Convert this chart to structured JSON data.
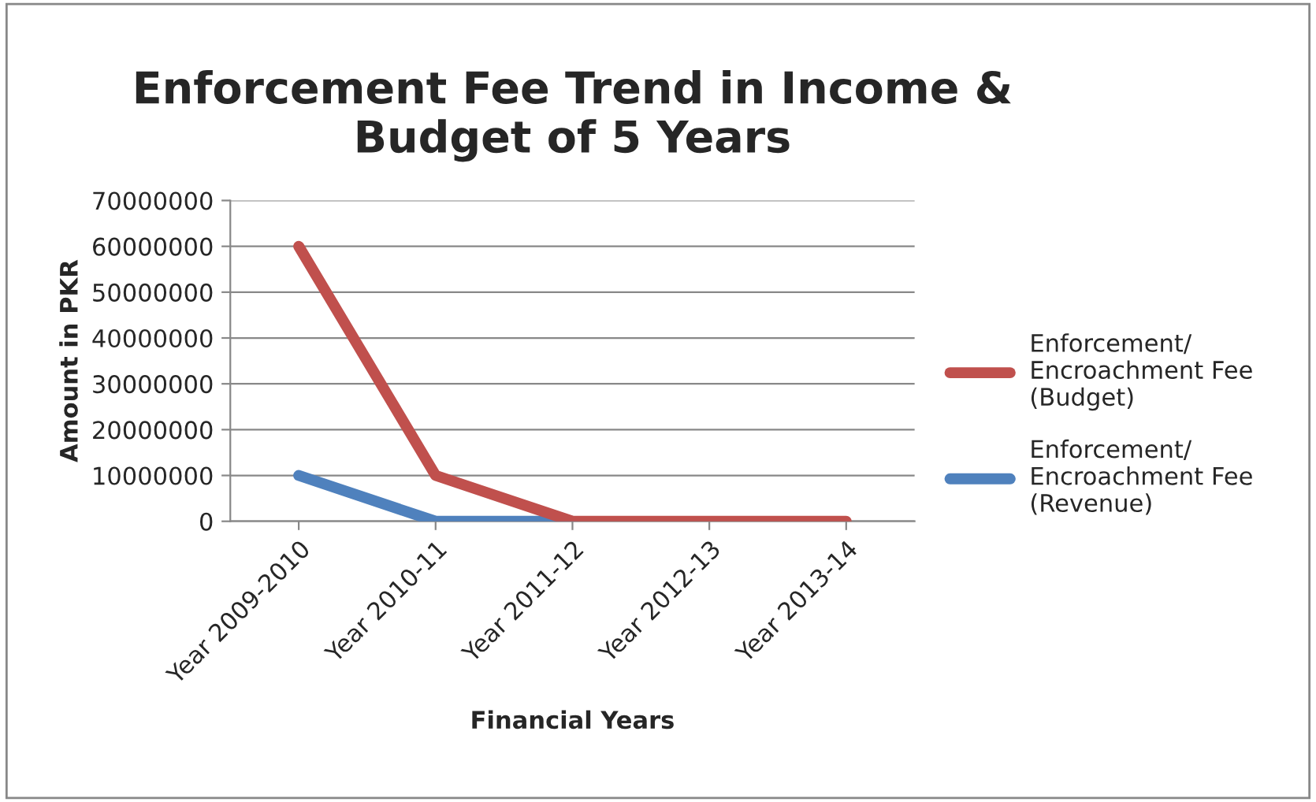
{
  "chart_data": {
    "type": "line",
    "title": "Enforcement Fee Trend in Income &\nBudget of 5 Years",
    "xlabel": "Financial Years",
    "ylabel": "Amount in PKR",
    "categories": [
      "Year 2009-2010",
      "Year 2010-11",
      "Year 2011-12",
      "Year 2012-13",
      "Year 2013-14"
    ],
    "series": [
      {
        "name": "Enforcement/\nEncroachment Fee\n(Budget)",
        "color": "#c0504d",
        "values": [
          60000000,
          10000000,
          0,
          0,
          0
        ]
      },
      {
        "name": "Enforcement/\nEncroachment Fee\n(Revenue)",
        "color": "#4f81bd",
        "values": [
          10000000,
          0,
          0,
          null,
          null
        ]
      }
    ],
    "ylim": [
      0,
      70000000
    ],
    "yticks": [
      0,
      10000000,
      20000000,
      30000000,
      40000000,
      50000000,
      60000000,
      70000000
    ],
    "grid": "y",
    "legend": "right",
    "marker": "none",
    "line_style": "solid"
  }
}
